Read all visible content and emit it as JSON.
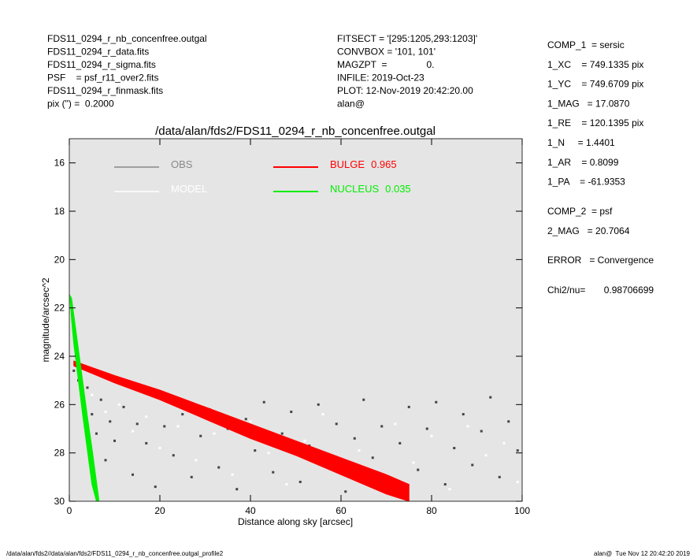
{
  "header": {
    "left": [
      "FDS11_0294_r_nb_concenfree.outgal",
      "FDS11_0294_r_data.fits",
      "FDS11_0294_r_sigma.fits",
      "PSF    = psf_r11_over2.fits",
      "FDS11_0294_r_finmask.fits",
      "pix (\") =  0.2000"
    ],
    "middle": [
      "FITSECT = '[295:1205,293:1203]'",
      "CONVBOX = '101, 101'",
      "MAGZPT  =               0.",
      "INFILE: 2019-Oct-23",
      "PLOT: 12-Nov-2019 20:42:20.00",
      "alan@"
    ],
    "right": [
      [
        "COMP_1  = sersic",
        "1_XC    = 749.1335 pix",
        "1_YC    = 749.6709 pix",
        "1_MAG   = 17.0870",
        "1_RE    = 120.1395 pix",
        "1_N     = 1.4401",
        "1_AR    = 0.8099",
        "1_PA    = -61.9353"
      ],
      [
        "COMP_2  = psf",
        "2_MAG   = 20.7064"
      ],
      [
        "ERROR   = Convergence"
      ],
      [
        "Chi2/nu=       0.98706699"
      ]
    ]
  },
  "footer": {
    "left": "/data/alan/fds2//data/alan/fds2/FDS11_0294_r_nb_concenfree.outgal_profile2",
    "right": "alan@  Tue Nov 12 20:42:20 2019"
  },
  "chart_data": {
    "type": "scatter",
    "title": "/data/alan/fds2/FDS11_0294_r_nb_concenfree.outgal",
    "x_label": "Distance along sky [arcsec]",
    "y_label": "magnitude/arcsec^2",
    "xlim": [
      0,
      100
    ],
    "xticks": [
      0,
      20,
      40,
      60,
      80,
      100
    ],
    "ylim": [
      15,
      30
    ],
    "yticks": [
      16,
      18,
      20,
      22,
      24,
      26,
      28,
      30
    ],
    "invert_y": true,
    "grid": false,
    "background": "#e5e5e5",
    "series": [
      {
        "name": "OBS",
        "type": "points",
        "color": "#444444",
        "legend_color": "#888888",
        "x": [
          1,
          2,
          3,
          4,
          5,
          6,
          7,
          8,
          9,
          10,
          12,
          14,
          15,
          17,
          19,
          21,
          23,
          25,
          27,
          29,
          31,
          33,
          35,
          37,
          39,
          41,
          43,
          45,
          47,
          49,
          51,
          53,
          55,
          57,
          59,
          61,
          63,
          65,
          67,
          69,
          71,
          73,
          75,
          77,
          79,
          81,
          83,
          85,
          87,
          89,
          91,
          93,
          95,
          97,
          99
        ],
        "values": [
          24.6,
          25.0,
          25.9,
          25.3,
          26.4,
          27.2,
          25.8,
          28.3,
          26.7,
          27.5,
          26.1,
          28.9,
          26.8,
          27.6,
          29.4,
          26.9,
          28.1,
          26.4,
          29.0,
          27.3,
          26.2,
          28.6,
          27.0,
          29.5,
          26.6,
          27.9,
          25.9,
          28.8,
          27.2,
          26.3,
          29.2,
          27.7,
          26.0,
          28.4,
          26.8,
          29.6,
          27.4,
          25.8,
          28.2,
          26.9,
          29.1,
          27.6,
          26.1,
          28.7,
          27.0,
          25.9,
          29.3,
          27.8,
          26.4,
          28.5,
          27.1,
          25.7,
          29.0,
          26.7,
          27.9
        ]
      },
      {
        "name": "MODEL",
        "type": "points",
        "color": "#ffffff",
        "legend_color": "#ffffff",
        "x": [
          2,
          5,
          8,
          11,
          14,
          17,
          20,
          24,
          28,
          32,
          36,
          40,
          44,
          48,
          52,
          56,
          60,
          64,
          68,
          72,
          76,
          80,
          84,
          88,
          92,
          96,
          99
        ],
        "values": [
          24.8,
          25.6,
          26.3,
          26.0,
          27.1,
          26.5,
          27.8,
          26.9,
          28.3,
          27.2,
          28.9,
          26.7,
          28.0,
          29.3,
          27.5,
          26.4,
          28.6,
          27.9,
          29.1,
          26.8,
          28.4,
          27.3,
          29.5,
          26.9,
          28.1,
          27.6,
          29.2
        ]
      },
      {
        "name": "BULGE",
        "fraction": 0.965,
        "type": "band",
        "color": "#ff0000",
        "legend_color": "#ff0000",
        "x": [
          1,
          10,
          20,
          30,
          40,
          50,
          60,
          70,
          75
        ],
        "values": [
          24.2,
          24.8,
          25.4,
          26.1,
          26.8,
          27.5,
          28.2,
          28.9,
          29.3
        ],
        "upper": [
          24.4,
          25.1,
          25.8,
          26.6,
          27.4,
          28.1,
          28.9,
          29.7,
          30
        ]
      },
      {
        "name": "NUCLEUS",
        "fraction": 0.035,
        "type": "band",
        "color": "#00ee00",
        "legend_color": "#00ee00",
        "x": [
          0.2,
          0.5,
          1,
          2,
          3,
          4,
          5,
          6,
          6.5
        ],
        "values": [
          21.5,
          21.6,
          22.3,
          23.7,
          25.1,
          26.5,
          27.8,
          29.2,
          29.9
        ],
        "upper": [
          21.7,
          22.5,
          23.5,
          25.0,
          26.5,
          27.9,
          29.3,
          30,
          30
        ]
      }
    ]
  }
}
